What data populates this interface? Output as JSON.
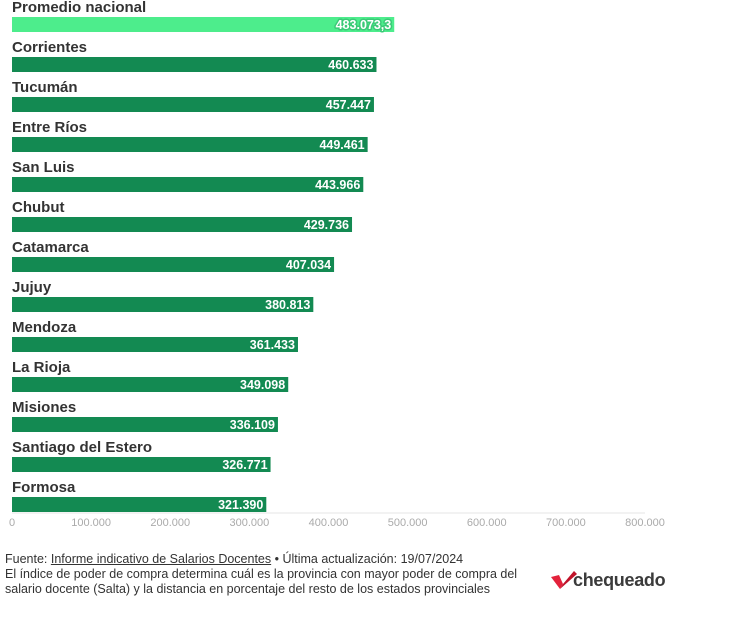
{
  "chart_data": {
    "type": "bar",
    "orientation": "horizontal",
    "categories": [
      "Promedio nacional",
      "Corrientes",
      "Tucumán",
      "Entre Ríos",
      "San Luis",
      "Chubut",
      "Catamarca",
      "Jujuy",
      "Mendoza",
      "La Rioja",
      "Misiones",
      "Santiago del Estero",
      "Formosa"
    ],
    "values": [
      483073.3,
      460633,
      457447,
      449461,
      443966,
      429736,
      407034,
      380813,
      361433,
      349098,
      336109,
      326771,
      321390
    ],
    "value_labels": [
      "483.073,3",
      "460.633",
      "457.447",
      "449.461",
      "443.966",
      "429.736",
      "407.034",
      "380.813",
      "361.433",
      "349.098",
      "336.109",
      "326.771",
      "321.390"
    ],
    "xlim": [
      0,
      800000
    ],
    "ticks": [
      "0",
      "100.000",
      "200.000",
      "300.000",
      "400.000",
      "500.000",
      "600.000",
      "700.000",
      "800.000"
    ],
    "highlight_index": 0,
    "colors": {
      "highlight": "#4ded8c",
      "bar": "#138a52",
      "highlight_stroke": "#3bc977"
    },
    "grid": false
  },
  "footer": {
    "source_prefix": "Fuente: ",
    "source_link": "Informe indicativo de Salarios Docentes",
    "update": " • Última actualización: 19/07/2024",
    "note": "El índice de poder de compra determina cuál es la provincia con mayor poder de compra del salario docente (Salta) y la distancia en porcentaje del resto de los estados provinciales"
  },
  "logo": {
    "text": "chequeado",
    "icon": "chequeado-check-icon"
  }
}
